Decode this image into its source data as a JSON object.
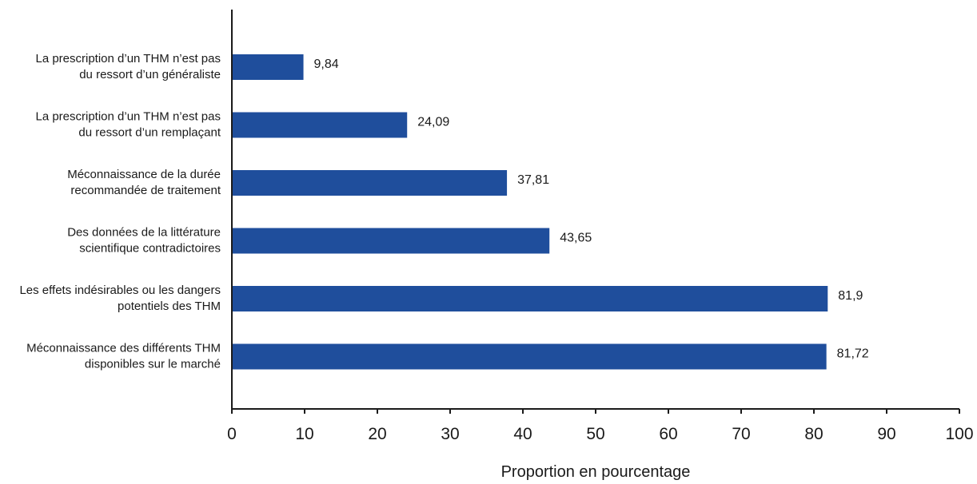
{
  "chart_data": {
    "type": "bar",
    "orientation": "horizontal",
    "categories": [
      "La prescription d’un THM n’est pas du ressort d’un généraliste",
      "La prescription d’un THM n’est pas du ressort d’un remplaçant",
      "Méconnaissance de la durée recommandée de traitement",
      "Des données de la littérature scientifique contradictoires",
      "Les effets indésirables ou les dangers potentiels des THM",
      "Méconnaissance des différents THM disponibles sur le marché"
    ],
    "category_lines": [
      [
        "La prescription d’un THM n’est pas",
        "du ressort d’un généraliste"
      ],
      [
        "La prescription d’un THM n’est pas",
        "du ressort d’un remplaçant"
      ],
      [
        "Méconnaissance de la durée",
        "recommandée de traitement"
      ],
      [
        "Des données de la littérature",
        "scientifique contradictoires"
      ],
      [
        "Les effets indésirables ou les dangers",
        "potentiels des THM"
      ],
      [
        "Méconnaissance des différents THM",
        "disponibles sur le marché"
      ]
    ],
    "values": [
      9.84,
      24.09,
      37.81,
      43.65,
      81.9,
      81.72
    ],
    "value_labels": [
      "9,84",
      "24,09",
      "37,81",
      "43,65",
      "81,9",
      "81,72"
    ],
    "xlabel": "Proportion en pourcentage",
    "ylabel": "",
    "xlim": [
      0,
      100
    ],
    "xticks": [
      0,
      10,
      20,
      30,
      40,
      50,
      60,
      70,
      80,
      90,
      100
    ],
    "grid": false,
    "legend": "none",
    "bar_color": "#1f4e9c"
  }
}
